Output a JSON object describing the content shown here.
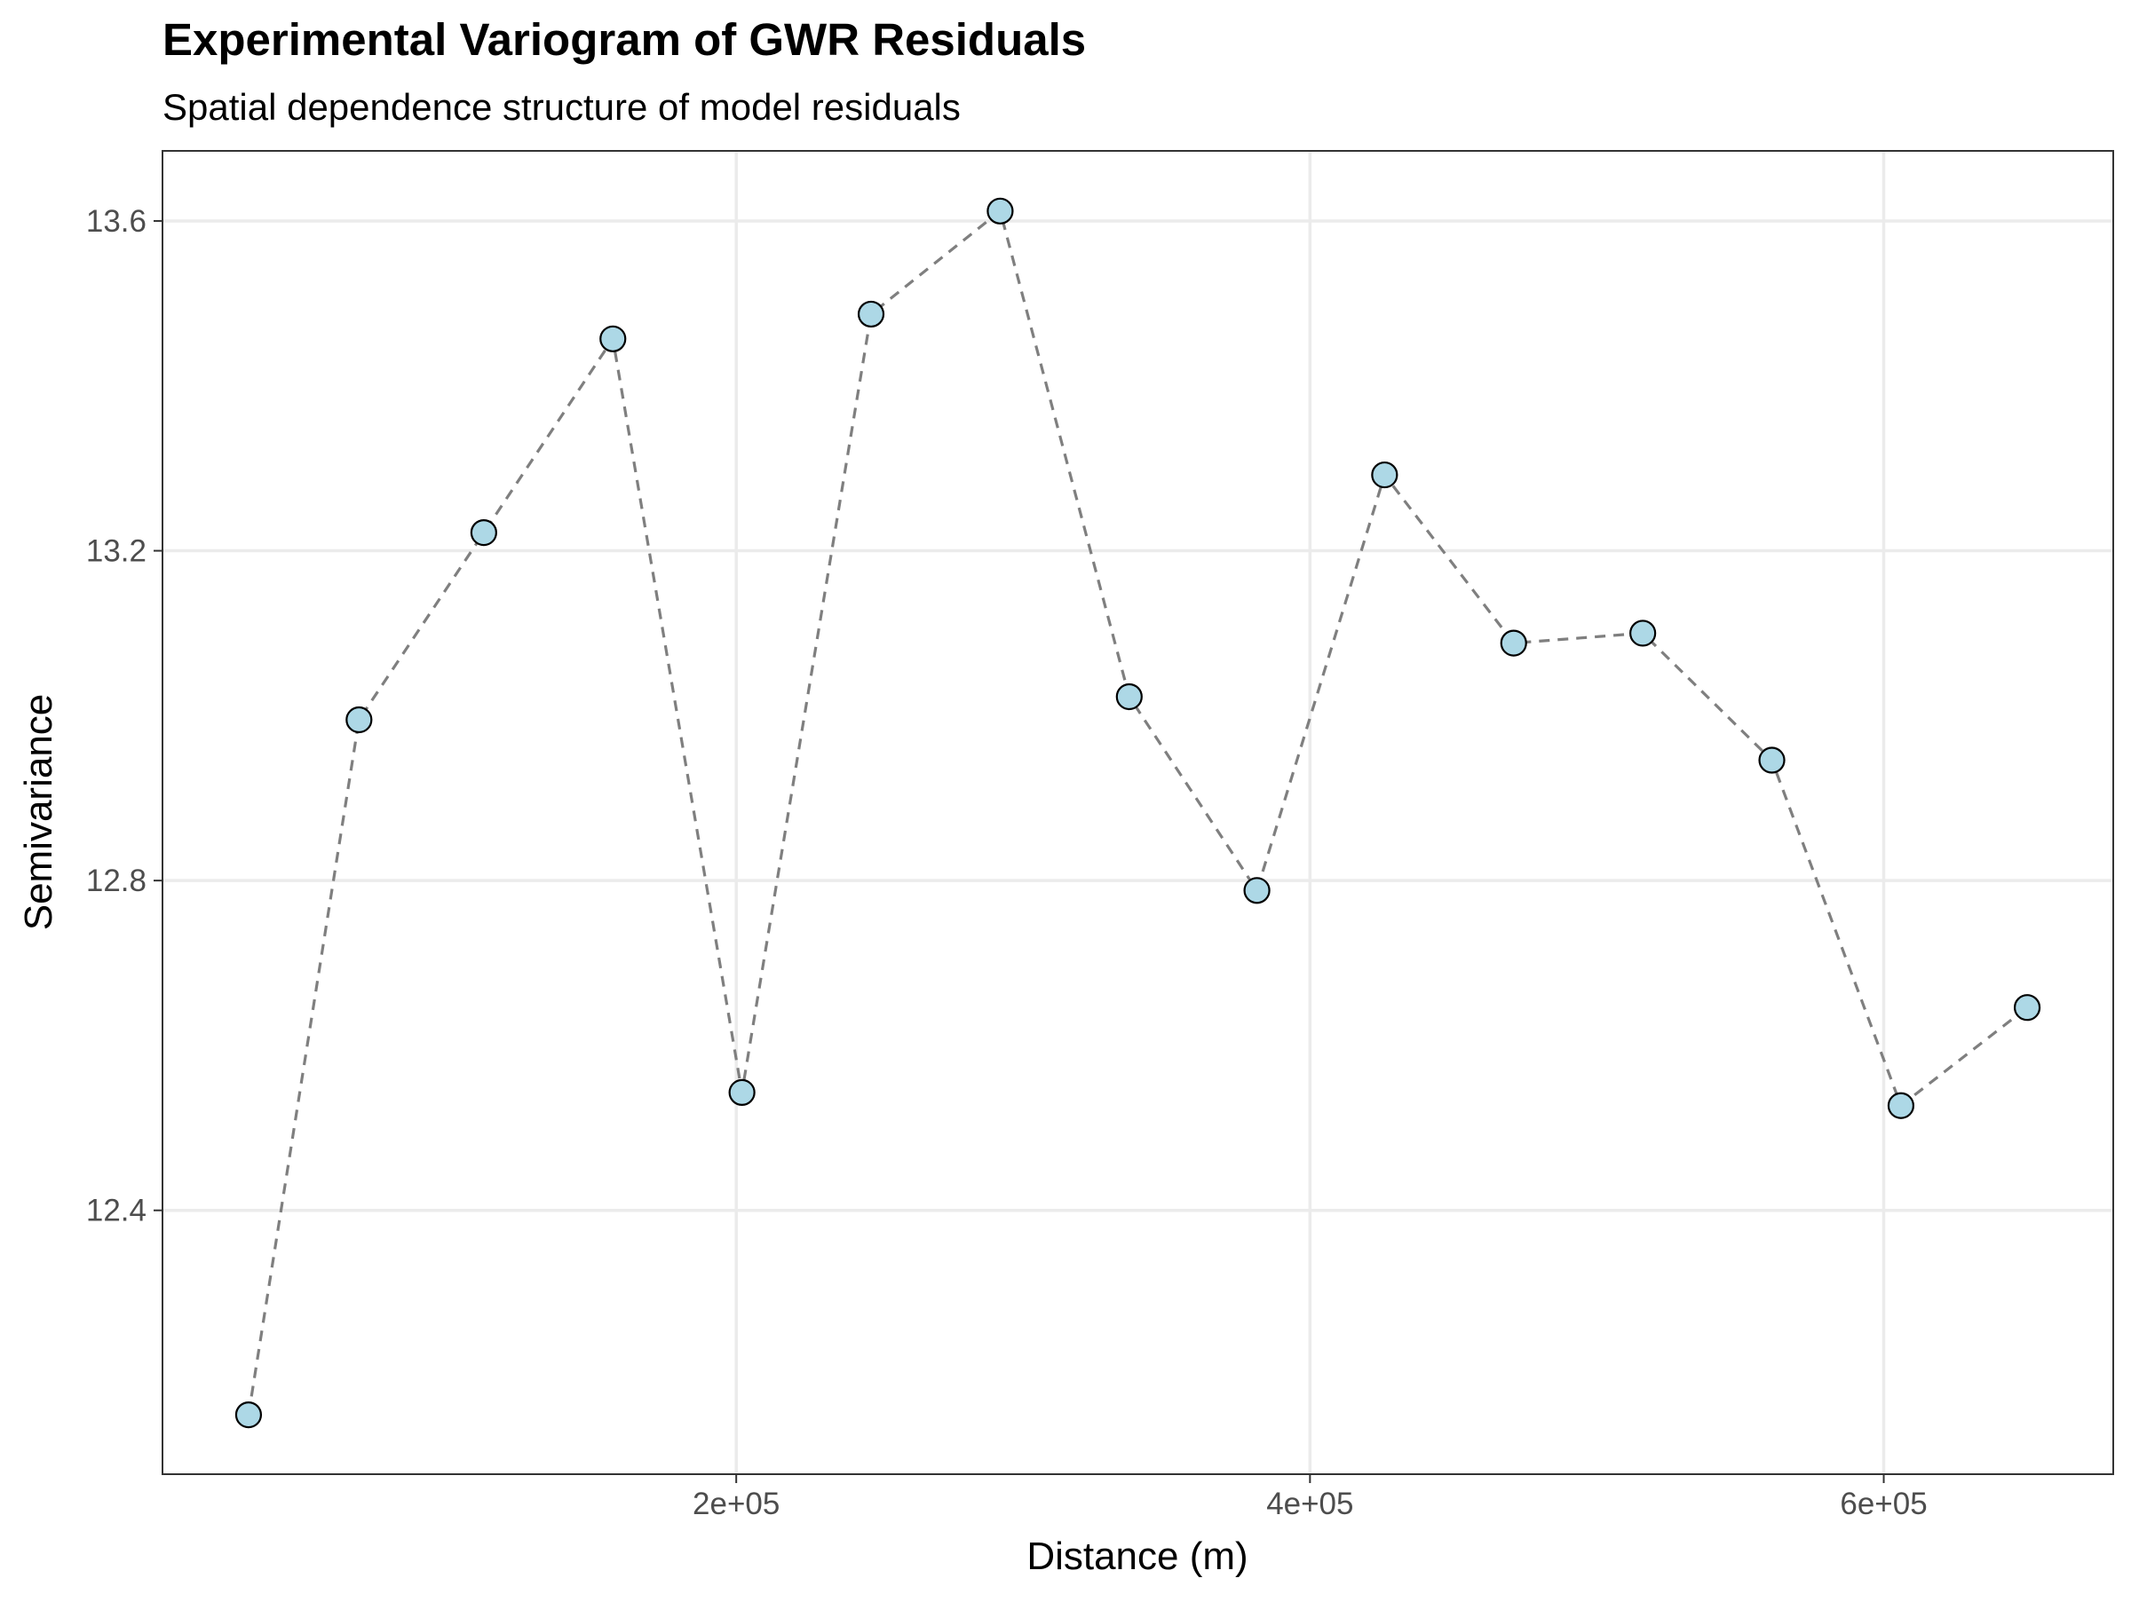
{
  "title": "Experimental Variogram of GWR Residuals",
  "subtitle": "Spatial dependence structure of model residuals",
  "colors": {
    "point_fill": "#add8e6",
    "point_stroke": "#000000",
    "line": "#7f7f7f",
    "grid": "#ebebeb",
    "panel_border": "#333333",
    "tick_text": "#4d4d4d"
  },
  "chart_data": {
    "type": "scatter",
    "title": "Experimental Variogram of GWR Residuals",
    "subtitle": "Spatial dependence structure of model residuals",
    "xlabel": "Distance (m)",
    "ylabel": "Semivariance",
    "xlim": [
      0,
      680000
    ],
    "ylim": [
      12.08,
      13.685
    ],
    "x_ticks": [
      200000,
      400000,
      600000
    ],
    "x_tick_labels": [
      "2e+05",
      "4e+05",
      "6e+05"
    ],
    "y_ticks": [
      12.4,
      12.8,
      13.2,
      13.6
    ],
    "y_tick_labels": [
      "12.4",
      "12.8",
      "13.2",
      "13.6"
    ],
    "grid": true,
    "connecting_line": "dashed",
    "series": [
      {
        "x": [
          30000,
          68500,
          112000,
          157000,
          202000,
          247000,
          292000,
          337000,
          381500,
          426000,
          471000,
          516000,
          561000,
          606000,
          650000
        ],
        "y": [
          12.152,
          12.995,
          13.222,
          13.457,
          12.543,
          13.487,
          13.612,
          13.023,
          12.788,
          13.292,
          13.088,
          13.1,
          12.946,
          12.527,
          12.646
        ]
      }
    ]
  }
}
